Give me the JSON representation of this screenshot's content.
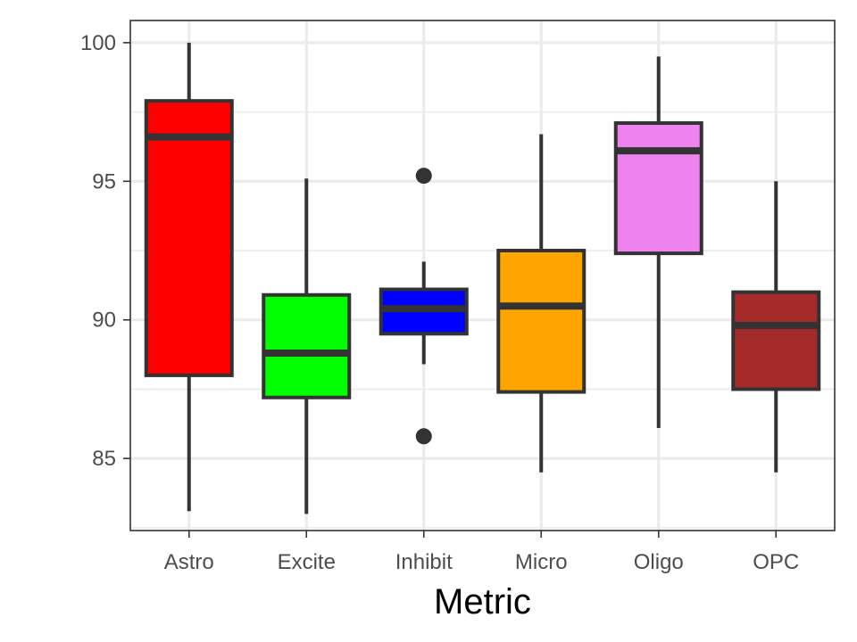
{
  "chart_data": {
    "type": "boxplot",
    "xlabel": "Metric",
    "ylabel": "",
    "ylim": [
      82.4,
      100.8
    ],
    "yticks": [
      85,
      90,
      95,
      100
    ],
    "y_minor_ticks": [
      82.5,
      87.5,
      92.5,
      97.5
    ],
    "grid": true,
    "categories": [
      "Astro",
      "Excite",
      "Inhibit",
      "Micro",
      "Oligo",
      "OPC"
    ],
    "boxes": [
      {
        "name": "Astro",
        "color": "#FF0000",
        "min": 83.1,
        "q1": 88.0,
        "median": 96.6,
        "q3": 97.9,
        "max": 100.0,
        "outliers": []
      },
      {
        "name": "Excite",
        "color": "#00FF00",
        "min": 83.0,
        "q1": 87.2,
        "median": 88.8,
        "q3": 90.9,
        "max": 95.1,
        "outliers": []
      },
      {
        "name": "Inhibit",
        "color": "#0000FF",
        "min": 88.4,
        "q1": 89.5,
        "median": 90.4,
        "q3": 91.1,
        "max": 92.1,
        "outliers": [
          95.2,
          85.8
        ]
      },
      {
        "name": "Micro",
        "color": "#FFA500",
        "min": 84.5,
        "q1": 87.4,
        "median": 90.5,
        "q3": 92.5,
        "max": 96.7,
        "outliers": []
      },
      {
        "name": "Oligo",
        "color": "#EE82EE",
        "min": 86.1,
        "q1": 92.4,
        "median": 96.1,
        "q3": 97.1,
        "max": 99.5,
        "outliers": []
      },
      {
        "name": "OPC",
        "color": "#A52A2A",
        "min": 84.5,
        "q1": 87.5,
        "median": 89.8,
        "q3": 91.0,
        "max": 95.0,
        "outliers": []
      }
    ]
  }
}
